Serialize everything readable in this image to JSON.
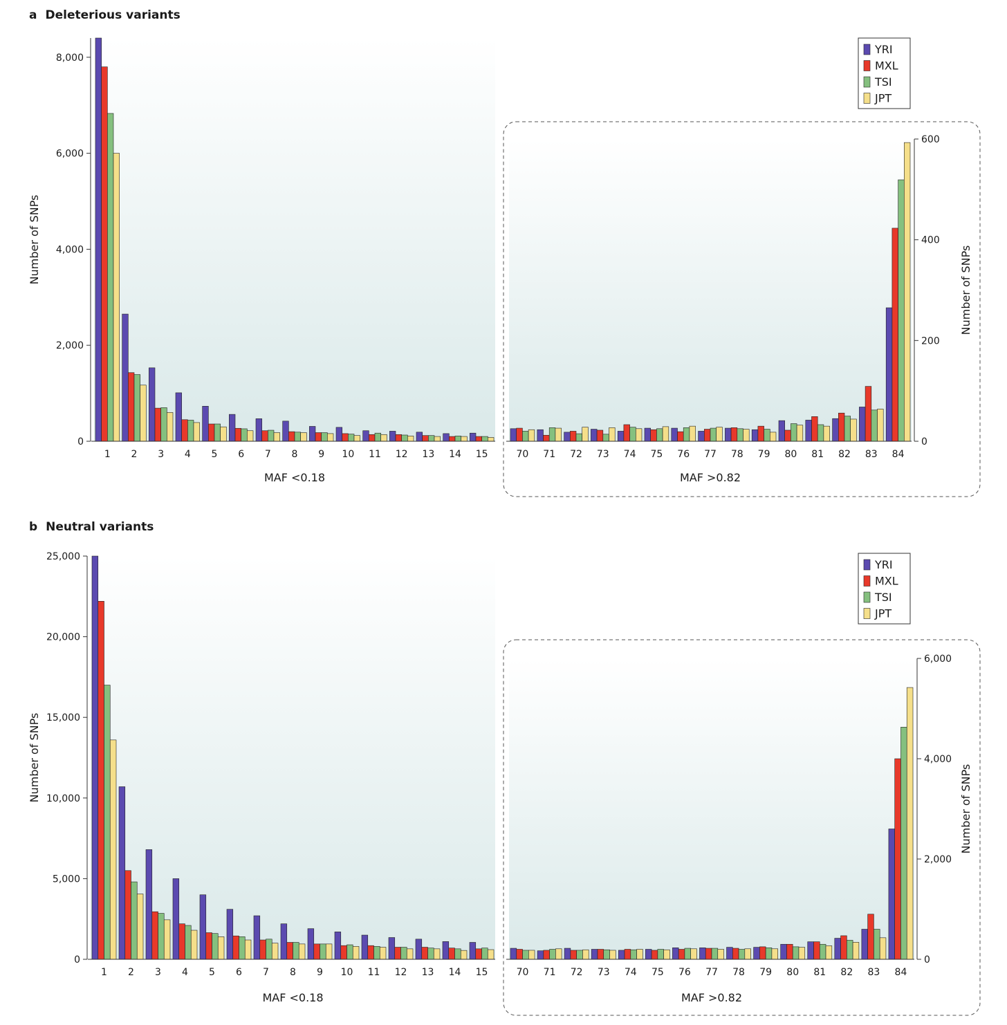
{
  "chart_data": [
    {
      "type": "bar",
      "panel": "a",
      "title": "Deleterious variants",
      "legend": {
        "entries": [
          "YRI",
          "MXL",
          "TSI",
          "JPT"
        ],
        "placement": "top-right"
      },
      "colors": [
        "#5b4ab0",
        "#e8392a",
        "#85c07f",
        "#f5df8a"
      ],
      "left": {
        "categories": [
          "1",
          "2",
          "3",
          "4",
          "5",
          "6",
          "7",
          "8",
          "9",
          "10",
          "11",
          "12",
          "13",
          "14",
          "15"
        ],
        "xlabel": "MAF <0.18",
        "ylabel": "Number of SNPs",
        "ylim": [
          0,
          8400
        ],
        "yticks": [
          0,
          2000,
          4000,
          6000,
          8000
        ],
        "ytick_labels": [
          "0",
          "2,000",
          "4,000",
          "6,000",
          "8,000"
        ],
        "series": [
          {
            "name": "YRI",
            "values": [
              8400,
              2650,
              1530,
              1010,
              730,
              560,
              470,
              420,
              310,
              290,
              220,
              210,
              190,
              160,
              170
            ]
          },
          {
            "name": "MXL",
            "values": [
              7800,
              1430,
              690,
              450,
              360,
              270,
              220,
              200,
              180,
              160,
              140,
              140,
              120,
              100,
              100
            ]
          },
          {
            "name": "TSI",
            "values": [
              6830,
              1390,
              700,
              440,
              360,
              260,
              230,
              190,
              180,
              150,
              170,
              130,
              120,
              110,
              100
            ]
          },
          {
            "name": "JPT",
            "values": [
              6000,
              1170,
              600,
              390,
              300,
              220,
              180,
              180,
              160,
              120,
              140,
              110,
              100,
              100,
              80
            ]
          }
        ]
      },
      "right": {
        "categories": [
          "70",
          "71",
          "72",
          "73",
          "74",
          "75",
          "76",
          "77",
          "78",
          "79",
          "80",
          "81",
          "82",
          "83",
          "84"
        ],
        "xlabel": "MAF >0.82",
        "ylabel": "Number of SNPs",
        "ylim": [
          0,
          600
        ],
        "yticks": [
          0,
          200,
          400,
          600
        ],
        "ytick_labels": [
          "0",
          "200",
          "400",
          "600"
        ],
        "series": [
          {
            "name": "YRI",
            "values": [
              25,
              23,
              18,
              24,
              20,
              26,
              26,
              20,
              26,
              23,
              41,
              42,
              45,
              68,
              265
            ]
          },
          {
            "name": "MXL",
            "values": [
              26,
              12,
              20,
              22,
              33,
              23,
              19,
              24,
              27,
              30,
              22,
              49,
              56,
              109,
              423
            ]
          },
          {
            "name": "TSI",
            "values": [
              20,
              27,
              15,
              14,
              28,
              25,
              27,
              26,
              25,
              24,
              35,
              33,
              50,
              62,
              519
            ]
          },
          {
            "name": "JPT",
            "values": [
              23,
              26,
              28,
              27,
              25,
              29,
              30,
              28,
              24,
              18,
              32,
              30,
              44,
              64,
              593
            ]
          }
        ]
      }
    },
    {
      "type": "bar",
      "panel": "b",
      "title": "Neutral variants",
      "legend": {
        "entries": [
          "YRI",
          "MXL",
          "TSI",
          "JPT"
        ],
        "placement": "top-right"
      },
      "colors": [
        "#5b4ab0",
        "#e8392a",
        "#85c07f",
        "#f5df8a"
      ],
      "left": {
        "categories": [
          "1",
          "2",
          "3",
          "4",
          "5",
          "6",
          "7",
          "8",
          "9",
          "10",
          "11",
          "12",
          "13",
          "14",
          "15"
        ],
        "xlabel": "MAF <0.18",
        "ylabel": "Number of SNPs",
        "ylim": [
          0,
          25000
        ],
        "yticks": [
          0,
          5000,
          10000,
          15000,
          20000,
          25000
        ],
        "ytick_labels": [
          "0",
          "5,000",
          "10,000",
          "15,000",
          "20,000",
          "25,000"
        ],
        "series": [
          {
            "name": "YRI",
            "values": [
              25000,
              10700,
              6800,
              5000,
              4000,
              3100,
              2700,
              2200,
              1900,
              1700,
              1500,
              1350,
              1250,
              1100,
              1050
            ]
          },
          {
            "name": "MXL",
            "values": [
              22200,
              5500,
              2950,
              2200,
              1650,
              1450,
              1200,
              1050,
              950,
              850,
              850,
              750,
              750,
              700,
              650
            ]
          },
          {
            "name": "TSI",
            "values": [
              17000,
              4800,
              2850,
              2100,
              1600,
              1400,
              1250,
              1050,
              950,
              900,
              800,
              750,
              700,
              650,
              700
            ]
          },
          {
            "name": "JPT",
            "values": [
              13600,
              4050,
              2450,
              1800,
              1400,
              1200,
              1000,
              950,
              950,
              800,
              750,
              650,
              650,
              550,
              600
            ]
          }
        ]
      },
      "right": {
        "categories": [
          "70",
          "71",
          "72",
          "73",
          "74",
          "75",
          "76",
          "77",
          "78",
          "79",
          "80",
          "81",
          "82",
          "83",
          "84"
        ],
        "xlabel": "MAF >0.82",
        "ylabel": "Number of SNPs",
        "ylim": [
          0,
          6000
        ],
        "yticks": [
          0,
          2000,
          4000,
          6000
        ],
        "ytick_labels": [
          "0",
          "2,000",
          "4,000",
          "6,000"
        ],
        "series": [
          {
            "name": "YRI",
            "values": [
              220,
              170,
              220,
              200,
              180,
              200,
              230,
              230,
              240,
              240,
              300,
              350,
              420,
              600,
              2600
            ]
          },
          {
            "name": "MXL",
            "values": [
              200,
              180,
              180,
              200,
              200,
              180,
              200,
              220,
              220,
              250,
              300,
              350,
              470,
              900,
              4000
            ]
          },
          {
            "name": "TSI",
            "values": [
              180,
              200,
              180,
              190,
              190,
              200,
              220,
              220,
              200,
              230,
              250,
              300,
              380,
              600,
              4630
            ]
          },
          {
            "name": "JPT",
            "values": [
              180,
              210,
              190,
              180,
              200,
              190,
              210,
              200,
              210,
              210,
              240,
              270,
              340,
              430,
              5420
            ]
          }
        ]
      }
    }
  ]
}
